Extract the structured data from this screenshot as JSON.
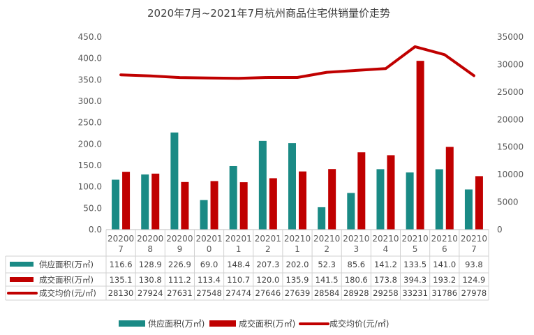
{
  "chart_data": {
    "type": "bar",
    "title": "2020年7月~2021年7月杭州商品住宅供销量价走势",
    "categories": [
      [
        "20200",
        "7"
      ],
      [
        "20200",
        "8"
      ],
      [
        "20200",
        "9"
      ],
      [
        "20201",
        "0"
      ],
      [
        "20201",
        "1"
      ],
      [
        "20201",
        "2"
      ],
      [
        "20210",
        "1"
      ],
      [
        "20210",
        "2"
      ],
      [
        "20210",
        "3"
      ],
      [
        "20210",
        "4"
      ],
      [
        "20210",
        "5"
      ],
      [
        "20210",
        "6"
      ],
      [
        "20210",
        "7"
      ]
    ],
    "series": [
      {
        "name": "供应面积(万㎡)",
        "type": "bar",
        "axis": "left",
        "color": "#1a8a85",
        "values": [
          116.6,
          128.9,
          226.9,
          69.0,
          148.4,
          207.3,
          202.0,
          52.3,
          85.6,
          141.2,
          133.5,
          141.0,
          93.8
        ],
        "labels": [
          "116.6",
          "128.9",
          "226.9",
          "69.0",
          "148.4",
          "207.3",
          "202.0",
          "52.3",
          "85.6",
          "141.2",
          "133.5",
          "141.0",
          "93.8"
        ]
      },
      {
        "name": "成交面积(万㎡)",
        "type": "bar",
        "axis": "left",
        "color": "#c00000",
        "values": [
          135.1,
          130.8,
          111.2,
          113.4,
          110.7,
          120.0,
          135.9,
          141.5,
          180.6,
          173.8,
          394.3,
          193.2,
          124.9
        ],
        "labels": [
          "135.1",
          "130.8",
          "111.2",
          "113.4",
          "110.7",
          "120.0",
          "135.9",
          "141.5",
          "180.6",
          "173.8",
          "394.3",
          "193.2",
          "124.9"
        ]
      },
      {
        "name": "成交均价(元/㎡)",
        "type": "line",
        "axis": "right",
        "color": "#c00000",
        "values": [
          28130,
          27924,
          27631,
          27548,
          27474,
          27646,
          27639,
          28584,
          28928,
          29258,
          33231,
          31786,
          27978
        ],
        "labels": [
          "28130",
          "27924",
          "27631",
          "27548",
          "27474",
          "27646",
          "27639",
          "28584",
          "28928",
          "29258",
          "33231",
          "31786",
          "27978"
        ]
      }
    ],
    "y_left": {
      "min": 0,
      "max": 450,
      "ticks": [
        "0.0",
        "50.0",
        "100.0",
        "150.0",
        "200.0",
        "250.0",
        "300.0",
        "350.0",
        "400.0",
        "450.0"
      ]
    },
    "y_right": {
      "min": 0,
      "max": 35000,
      "ticks": [
        "0",
        "5000",
        "10000",
        "15000",
        "20000",
        "25000",
        "30000",
        "35000"
      ]
    },
    "grid": false,
    "data_table": true,
    "legend": {
      "position": "bottom",
      "items": [
        {
          "label": "供应面积(万㎡)",
          "swatch": "bar",
          "color": "#1a8a85"
        },
        {
          "label": "成交面积(万㎡)",
          "swatch": "bar",
          "color": "#c00000"
        },
        {
          "label": "成交均价(元/㎡)",
          "swatch": "line",
          "color": "#c00000"
        }
      ]
    }
  }
}
